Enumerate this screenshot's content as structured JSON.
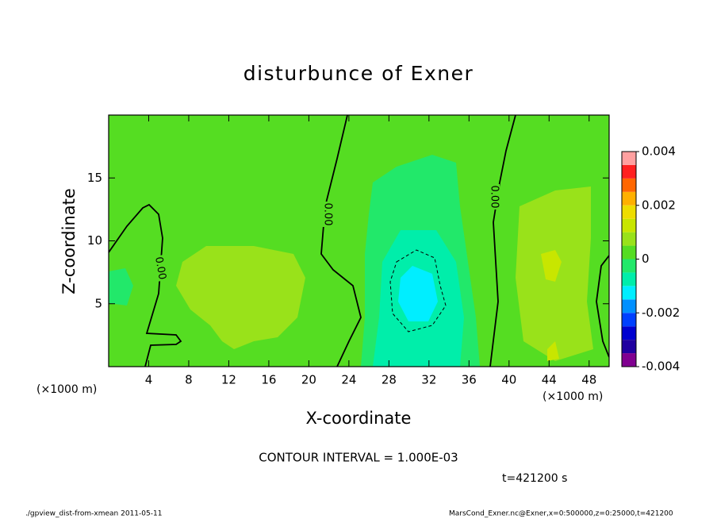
{
  "chart_data": {
    "type": "contour",
    "title": "disturbunce of Exner",
    "x_label": "X-coordinate",
    "y_label": "Z-coordinate",
    "x_unit": "(×1000 m)",
    "xlim": [
      0,
      50
    ],
    "xticks": [
      4,
      8,
      12,
      16,
      20,
      24,
      28,
      32,
      36,
      40,
      44,
      48
    ],
    "ylim": [
      0,
      20
    ],
    "yticks": [
      5,
      10,
      15
    ],
    "clim": [
      -0.004,
      0.004
    ],
    "cticks": [
      0.004,
      0.002,
      0,
      -0.002,
      -0.004
    ],
    "levels": [
      -0.004,
      -0.0035,
      -0.003,
      -0.0025,
      -0.002,
      -0.0015,
      -0.001,
      -0.0005,
      0,
      0.0005,
      0.001,
      0.0015,
      0.002,
      0.0025,
      0.003,
      0.0035,
      0.004
    ],
    "colors": [
      "#800090",
      "#2000a0",
      "#0000d0",
      "#0040ff",
      "#0090ff",
      "#00eeff",
      "#00eeaa",
      "#22e86a",
      "#55dd22",
      "#99e21a",
      "#c8e600",
      "#eedd00",
      "#ffb000",
      "#ff6600",
      "#ff2020",
      "#ffa0a0"
    ],
    "contour_lines": [
      {
        "level": 0,
        "label": "0.00"
      },
      {
        "level": -0.001
      }
    ],
    "contour_interval": "CONTOUR INTERVAL = 1.000E-03",
    "time_label": "t=421200 s",
    "footer_left": "./gpview_dist-from-xmean  2011-05-11",
    "footer_right": "MarsCond_Exner.nc@Exner,x=0:500000,z=0:25000,t=421200"
  }
}
